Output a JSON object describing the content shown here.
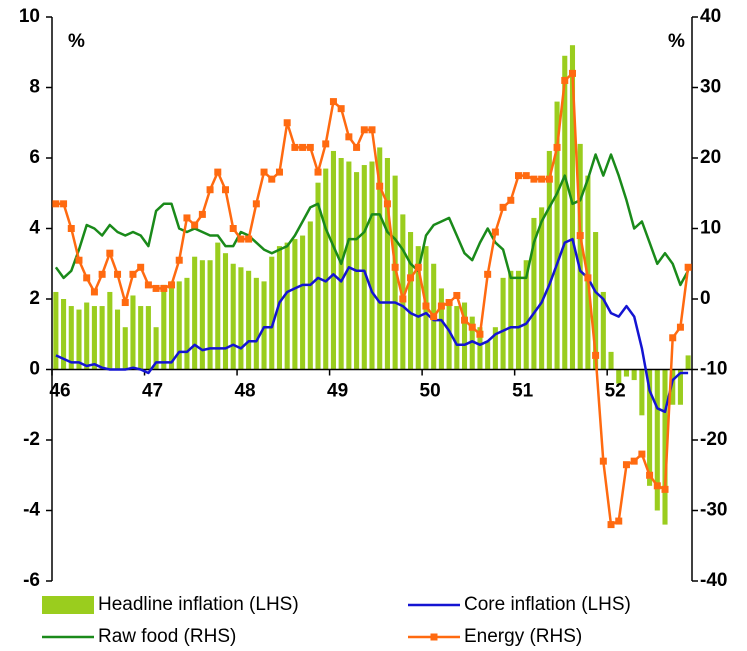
{
  "chart_data": {
    "type": "combo",
    "categories": [
      "46",
      null,
      null,
      null,
      null,
      null,
      null,
      null,
      null,
      null,
      null,
      null,
      "47",
      null,
      null,
      null,
      null,
      null,
      null,
      null,
      null,
      null,
      null,
      null,
      "48",
      null,
      null,
      null,
      null,
      null,
      null,
      null,
      null,
      null,
      null,
      null,
      "49",
      null,
      null,
      null,
      null,
      null,
      null,
      null,
      null,
      null,
      null,
      null,
      "50",
      null,
      null,
      null,
      null,
      null,
      null,
      null,
      null,
      null,
      null,
      null,
      "51",
      null,
      null,
      null,
      null,
      null,
      null,
      null,
      null,
      null,
      null,
      null,
      "52",
      null,
      null,
      null,
      null,
      null,
      null,
      null,
      null,
      null,
      null
    ],
    "ylim": [
      -6,
      10
    ],
    "yticks": [
      -6,
      -4,
      -2,
      0,
      2,
      4,
      6,
      8,
      10
    ],
    "y2lim": [
      -40,
      40
    ],
    "y2ticks": [
      -40,
      -30,
      -20,
      -10,
      0,
      10,
      20,
      30,
      40
    ],
    "y_unit": "%",
    "y2_unit": "%",
    "legend": "bottom",
    "series": [
      {
        "name": "Headline inflation (LHS)",
        "type": "bar",
        "axis": "y",
        "color": "#9acd1e",
        "values": [
          2.2,
          2.0,
          1.8,
          1.7,
          1.9,
          1.8,
          1.8,
          2.2,
          1.7,
          1.2,
          2.1,
          1.8,
          1.8,
          1.2,
          2.4,
          2.5,
          2.5,
          2.6,
          3.2,
          3.1,
          3.1,
          3.6,
          3.3,
          3.0,
          2.9,
          2.8,
          2.6,
          2.5,
          3.2,
          3.5,
          3.6,
          3.7,
          3.8,
          4.2,
          5.3,
          5.7,
          6.2,
          6.0,
          5.9,
          5.6,
          5.8,
          5.9,
          6.3,
          6.0,
          5.5,
          4.4,
          3.9,
          3.5,
          3.5,
          3.0,
          2.3,
          2.0,
          1.8,
          1.9,
          1.5,
          1.2,
          0.8,
          1.2,
          2.6,
          2.8,
          2.8,
          3.1,
          4.3,
          4.6,
          6.2,
          7.6,
          8.9,
          9.2,
          6.4,
          5.5,
          3.9,
          2.2,
          0.5,
          -0.4,
          -0.2,
          -0.3,
          -1.3,
          -3.3,
          -4.0,
          -4.4,
          -1.0,
          -1.0,
          0.4
        ]
      },
      {
        "name": "Core inflation (LHS)",
        "type": "line",
        "axis": "y",
        "color": "#1414d2",
        "values": [
          0.4,
          0.3,
          0.2,
          0.2,
          0.1,
          0.15,
          0.05,
          0.0,
          0.0,
          0.0,
          0.05,
          0.0,
          -0.1,
          0.2,
          0.2,
          0.2,
          0.5,
          0.5,
          0.7,
          0.55,
          0.6,
          0.6,
          0.6,
          0.7,
          0.6,
          0.8,
          0.8,
          1.2,
          1.2,
          1.9,
          2.2,
          2.3,
          2.4,
          2.4,
          2.6,
          2.5,
          2.7,
          2.5,
          2.9,
          2.8,
          2.8,
          2.2,
          1.9,
          1.9,
          1.9,
          1.8,
          1.6,
          1.5,
          1.6,
          1.4,
          1.4,
          1.1,
          0.7,
          0.7,
          0.8,
          0.7,
          0.8,
          1.0,
          1.1,
          1.2,
          1.2,
          1.3,
          1.6,
          1.9,
          2.4,
          3.0,
          3.6,
          3.7,
          2.8,
          2.6,
          2.2,
          2.0,
          1.6,
          1.5,
          1.8,
          1.5,
          0.6,
          -0.6,
          -1.1,
          -1.2,
          -0.3,
          -0.1,
          -0.1
        ]
      },
      {
        "name": "Raw food (RHS)",
        "type": "line",
        "axis": "y2",
        "color": "#1a8a1a",
        "values": [
          4.5,
          3,
          4,
          7,
          10.5,
          10,
          9,
          10.5,
          9.5,
          9,
          9.5,
          9,
          7.5,
          12.5,
          13.5,
          13.5,
          10,
          9.5,
          10,
          9.5,
          9,
          9,
          7.5,
          7.5,
          9.5,
          9,
          8,
          7,
          6.5,
          7,
          7.5,
          9,
          11,
          13,
          13.5,
          10,
          7.5,
          5,
          8.5,
          8.5,
          9.5,
          12,
          12,
          9.5,
          8.5,
          7,
          5,
          4,
          9,
          10.5,
          11,
          11.5,
          9,
          6.5,
          5.5,
          8,
          10,
          8,
          7,
          3,
          3,
          3,
          8,
          11,
          13,
          15,
          17.5,
          13.5,
          14,
          17,
          20.5,
          17.5,
          20.5,
          17.5,
          14,
          10,
          11,
          8,
          5,
          6.5,
          5,
          2,
          4
        ]
      },
      {
        "name": "Energy (RHS)",
        "type": "line",
        "axis": "y2",
        "color": "#ff6a10",
        "marker": "square",
        "values": [
          13.5,
          13.5,
          10,
          5.5,
          3,
          1,
          3.5,
          6.5,
          3.5,
          -0.5,
          3.5,
          4.5,
          2,
          1.5,
          1.5,
          2,
          5.5,
          11.5,
          10.5,
          12,
          15.5,
          18,
          15.5,
          10,
          8.5,
          8.5,
          13.5,
          18,
          17,
          18,
          25,
          21.5,
          21.5,
          21.5,
          18,
          22,
          28,
          27,
          23,
          21.5,
          24,
          24,
          16,
          13.5,
          4.5,
          0,
          3,
          4.5,
          -1,
          -2.5,
          -1,
          -0.5,
          0.5,
          -3,
          -4,
          -5,
          3.5,
          9.5,
          13,
          14,
          17.5,
          17.5,
          17,
          17,
          17,
          21.5,
          31,
          32,
          9,
          3,
          -8,
          -23,
          -32,
          -31.5,
          -23.5,
          -23,
          -22,
          -25,
          -26.5,
          -27,
          -5.5,
          -4,
          4.5
        ]
      }
    ]
  }
}
